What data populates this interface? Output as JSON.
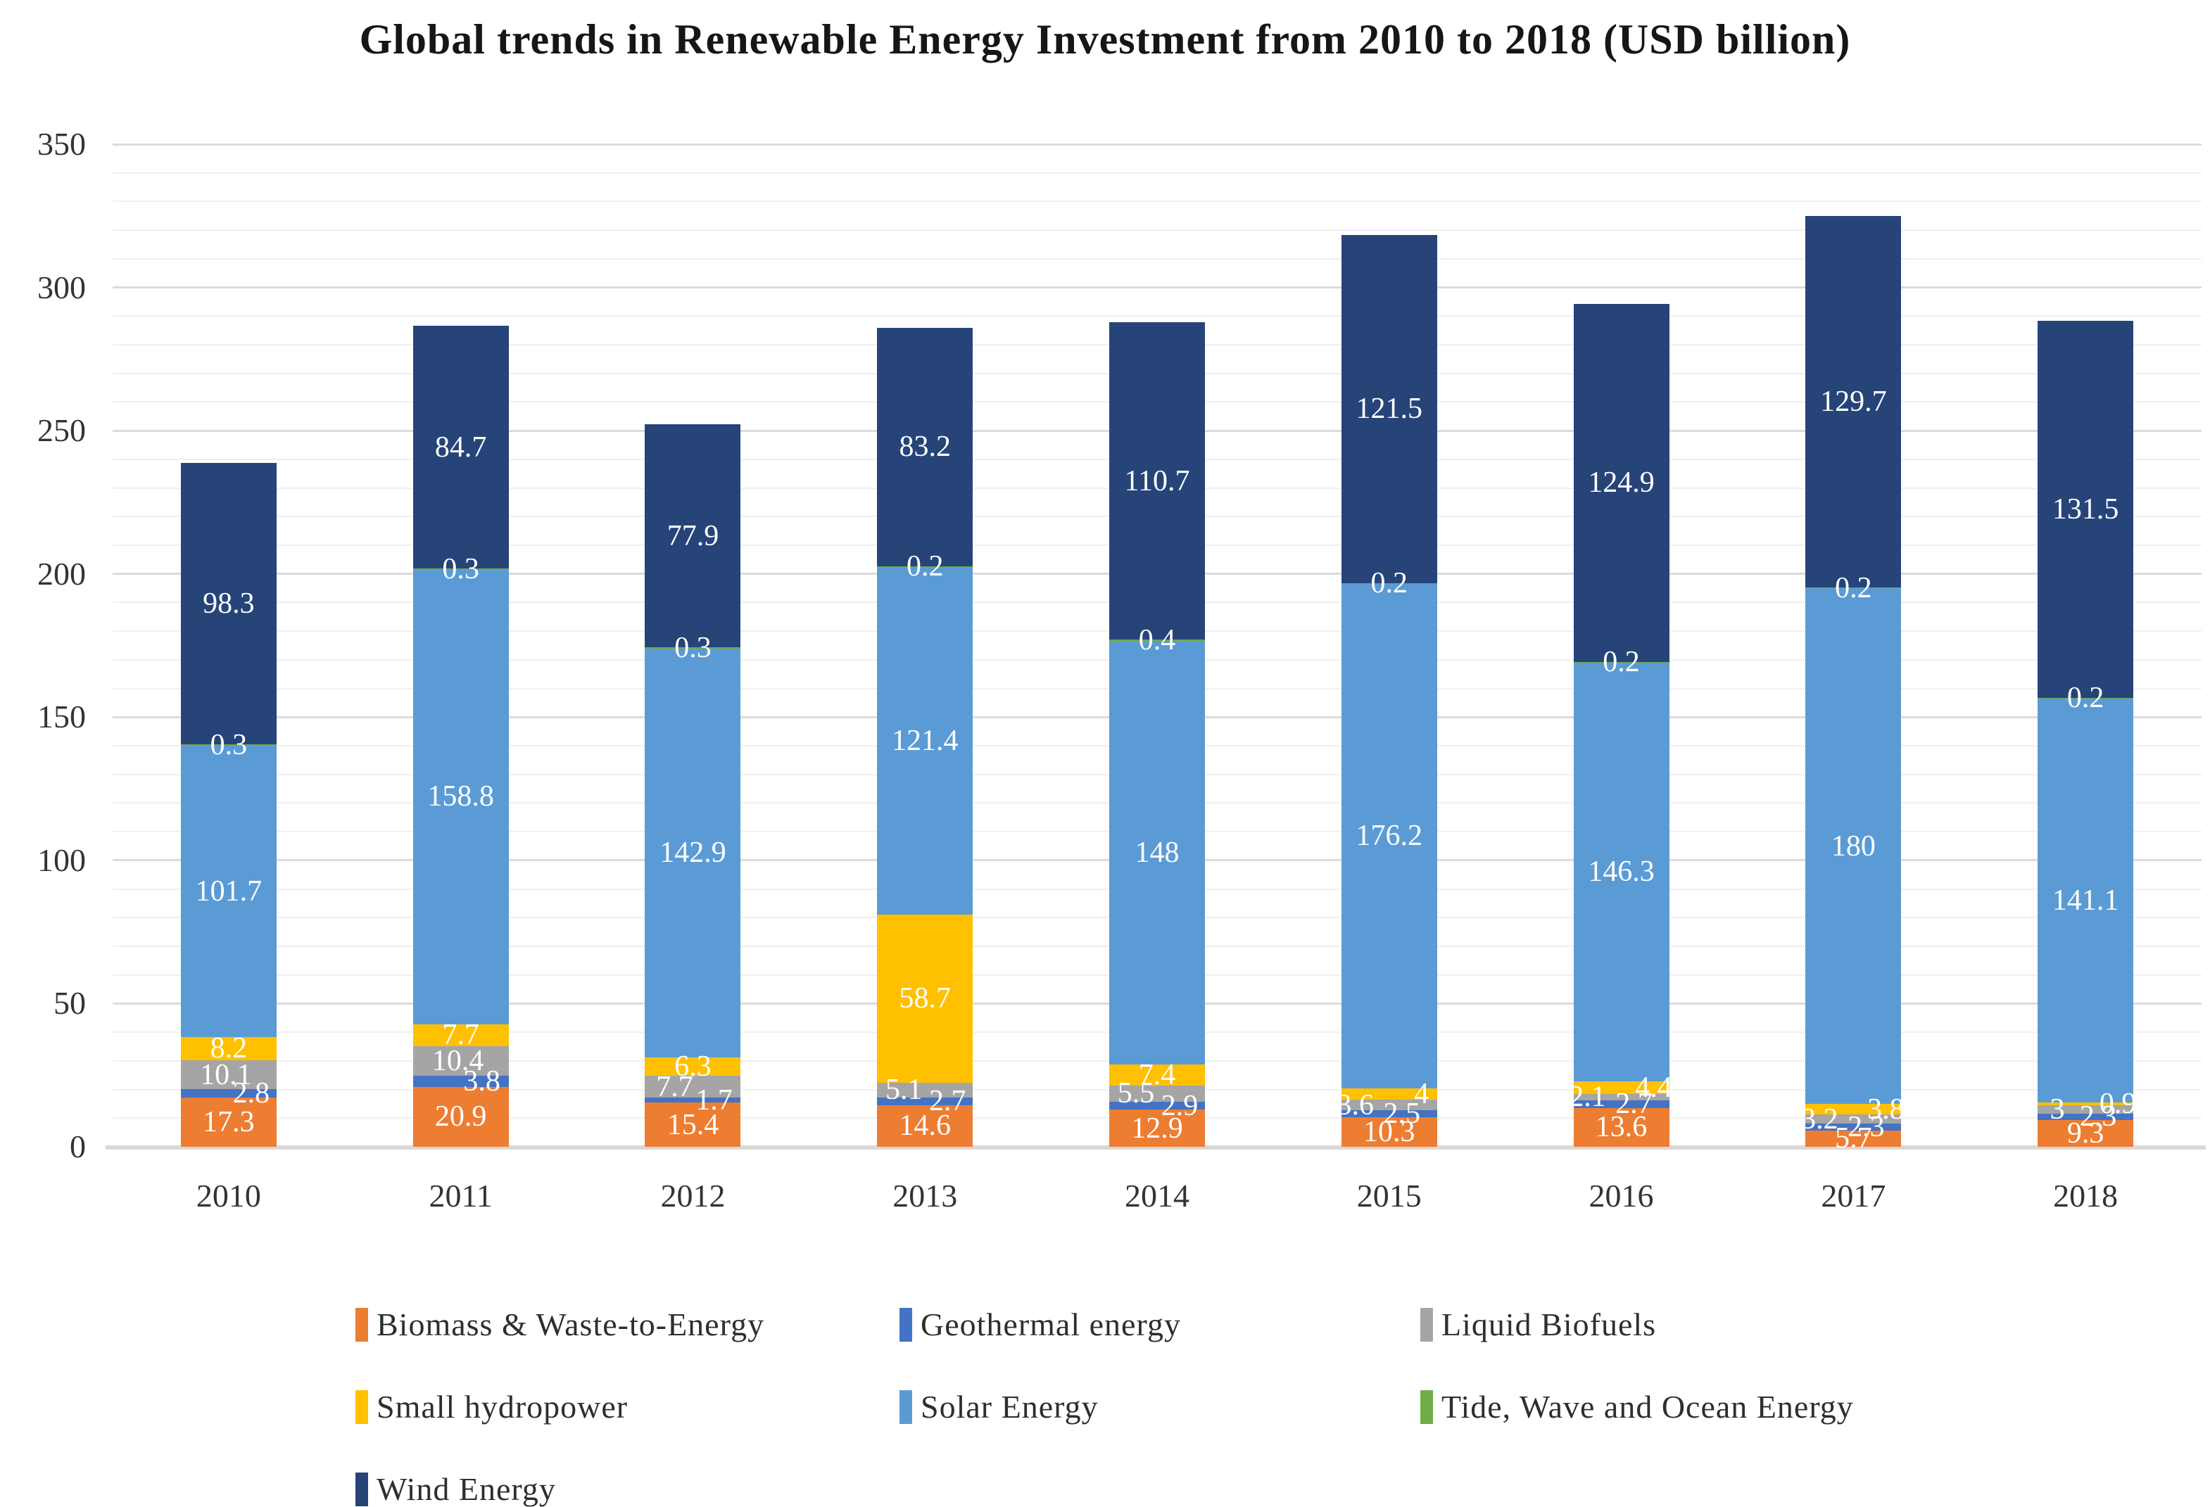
{
  "title": "Global trends in Renewable Energy Investment from 2010 to 2018 (USD billion)",
  "chart_data": {
    "type": "bar",
    "stacked": true,
    "title": "Global trends in Renewable Energy Investment from 2010 to 2018 (USD billion)",
    "categories": [
      "2010",
      "2011",
      "2012",
      "2013",
      "2014",
      "2015",
      "2016",
      "2017",
      "2018"
    ],
    "series": [
      {
        "name": "Biomass & Waste-to-Energy",
        "color": "#ED7D31",
        "values": [
          17.3,
          20.9,
          15.4,
          14.6,
          12.9,
          10.3,
          13.6,
          5.7,
          9.3
        ]
      },
      {
        "name": "Geothermal energy",
        "color": "#4472C4",
        "values": [
          2.8,
          3.8,
          1.7,
          2.7,
          2.9,
          2.5,
          2.7,
          2.3,
          2.3
        ]
      },
      {
        "name": "Liquid Biofuels",
        "color": "#A5A5A5",
        "values": [
          10.1,
          10.4,
          7.7,
          5.1,
          5.5,
          3.6,
          2.1,
          3.2,
          3
        ]
      },
      {
        "name": "Small hydropower",
        "color": "#FFC000",
        "values": [
          8.2,
          7.7,
          6.3,
          58.7,
          7.4,
          4,
          4.4,
          3.8,
          0.9
        ]
      },
      {
        "name": "Solar Energy",
        "color": "#5B9BD5",
        "values": [
          101.7,
          158.8,
          142.9,
          121.4,
          148,
          176.2,
          146.3,
          180,
          141.1
        ]
      },
      {
        "name": "Tide, Wave and Ocean Energy",
        "color": "#70AD47",
        "values": [
          0.3,
          0.3,
          0.3,
          0.2,
          0.4,
          0.2,
          0.2,
          0.2,
          0.2
        ]
      },
      {
        "name": "Wind Energy",
        "color": "#264478",
        "values": [
          98.3,
          84.7,
          77.9,
          83.2,
          110.7,
          121.5,
          124.9,
          129.7,
          131.5
        ]
      }
    ],
    "xlabel": "",
    "ylabel": "",
    "ylim": [
      0,
      350
    ],
    "yticks": [
      0,
      50,
      100,
      150,
      200,
      250,
      300,
      350
    ],
    "grid": "horizontal; minor every 10 (light), major every 50 (darker)",
    "legend_position": "bottom",
    "value_label_color": "#ffffff"
  }
}
